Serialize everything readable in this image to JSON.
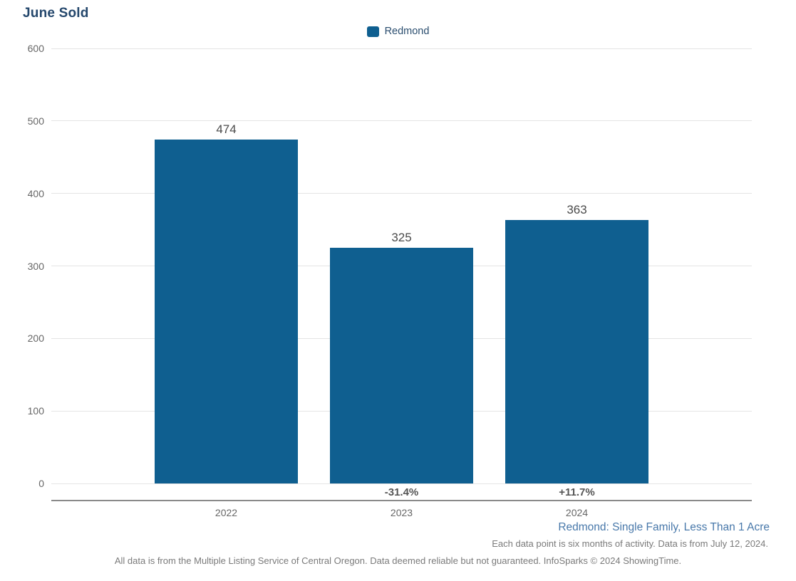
{
  "title": "June Sold",
  "legend": {
    "position": "top-center",
    "items": [
      {
        "label": "Redmond",
        "color": "#0F5F90"
      }
    ]
  },
  "colors": {
    "bar": "#0F5F90",
    "title_text": "#24476C",
    "legend_text": "#2B4E6F",
    "gridline": "#E4E4E4",
    "axis_line": "#8A8A8A",
    "tick_text": "#666666",
    "value_label_text": "#4A4A4A",
    "pct_label_text": "#555555",
    "segment_note_text": "#4878AA",
    "footer_gray_text": "#7A7A7A"
  },
  "chart_data": {
    "type": "bar",
    "title": "June Sold",
    "categories": [
      "2022",
      "2023",
      "2024"
    ],
    "series": [
      {
        "name": "Redmond",
        "values": [
          474,
          325,
          363
        ]
      }
    ],
    "value_labels": [
      "474",
      "325",
      "363"
    ],
    "pct_change_labels": [
      "",
      "-31.4%",
      "+11.7%"
    ],
    "xlabel": "",
    "ylabel": "",
    "ylim": [
      0,
      600
    ],
    "yticks": [
      0,
      100,
      200,
      300,
      400,
      500,
      600
    ],
    "grid": "horizontal",
    "legend_position": "top-center"
  },
  "footer": {
    "segment_label": "Redmond: Single Family, Less Than 1 Acre",
    "data_note": "Each data point is six months of activity. Data is from July 12, 2024.",
    "disclaimer": "All data is from the Multiple Listing Service of Central Oregon. Data deemed reliable but not guaranteed. InfoSparks © 2024 ShowingTime."
  }
}
